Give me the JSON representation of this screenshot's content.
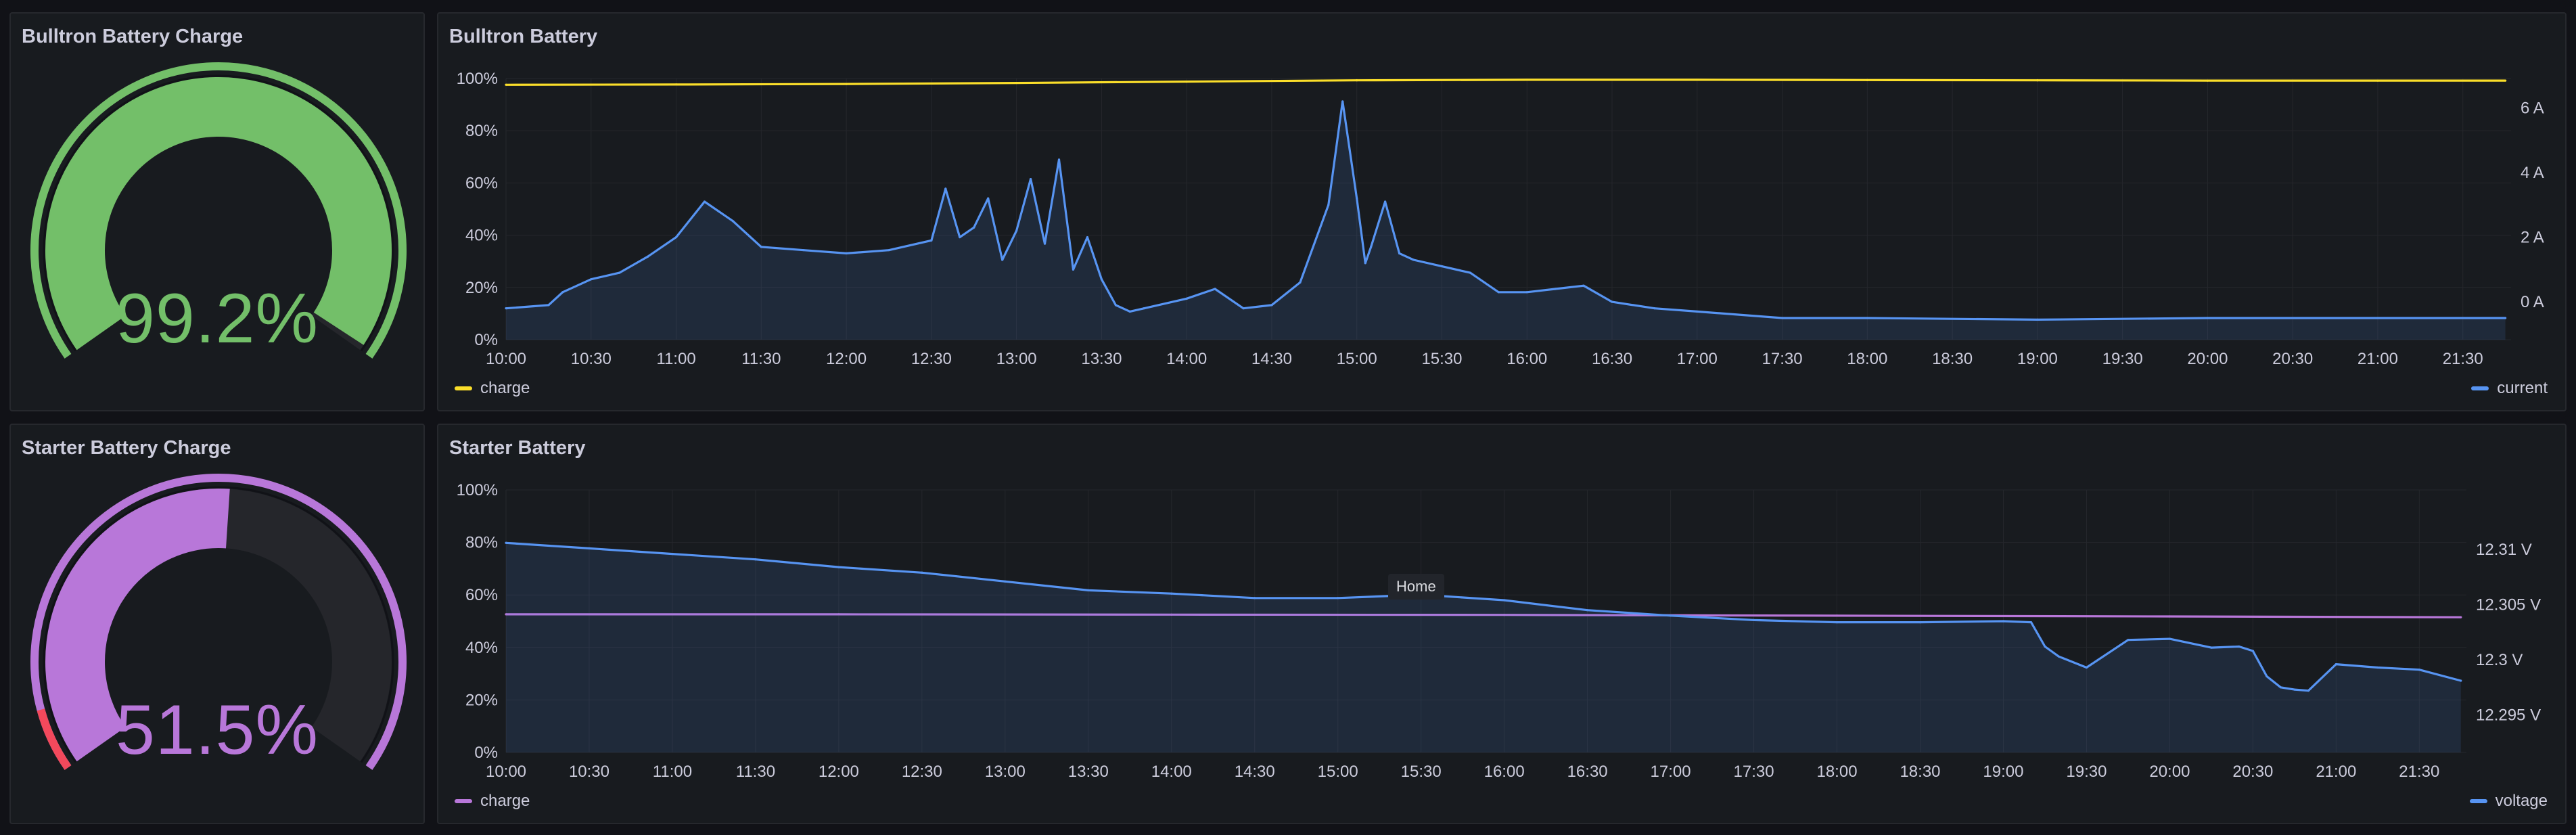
{
  "panels": {
    "bulltron_gauge": {
      "title": "Bulltron Battery Charge",
      "value_text": "99.2%",
      "value": 99.2,
      "min": 0,
      "max": 100,
      "color": "#73bf69"
    },
    "starter_gauge": {
      "title": "Starter Battery Charge",
      "value_text": "51.5%",
      "value": 51.5,
      "min": 0,
      "max": 100,
      "color": "#b877d9",
      "threshold_color": "#f2495c"
    },
    "bulltron_chart": {
      "title": "Bulltron Battery",
      "legend_left": "charge",
      "legend_right": "current"
    },
    "starter_chart": {
      "title": "Starter Battery",
      "legend_left": "charge",
      "legend_right": "voltage",
      "tooltip": "Home"
    }
  },
  "chart_data": [
    {
      "type": "line",
      "title": "Bulltron Battery",
      "x_ticks": [
        "10:00",
        "10:30",
        "11:00",
        "11:30",
        "12:00",
        "12:30",
        "13:00",
        "13:30",
        "14:00",
        "14:30",
        "15:00",
        "15:30",
        "16:00",
        "16:30",
        "17:00",
        "17:30",
        "18:00",
        "18:30",
        "19:00",
        "19:30",
        "20:00",
        "20:30",
        "21:00",
        "21:30"
      ],
      "y_left": {
        "ticks": [
          "0%",
          "20%",
          "40%",
          "60%",
          "80%",
          "100%"
        ],
        "range": [
          0,
          100
        ]
      },
      "y_right": {
        "ticks": [
          "0 A",
          "2 A",
          "4 A",
          "6 A"
        ],
        "range": [
          -1.17,
          6.91
        ]
      },
      "grid": true,
      "series": [
        {
          "name": "charge",
          "axis": "left",
          "color": "#fade2a",
          "fill": false,
          "x": [
            "10:00",
            "11:00",
            "12:00",
            "13:00",
            "14:00",
            "15:00",
            "16:00",
            "17:00",
            "18:00",
            "19:00",
            "20:00",
            "21:00",
            "21:45"
          ],
          "y": [
            97.6,
            97.7,
            97.9,
            98.3,
            98.8,
            99.3,
            99.5,
            99.5,
            99.4,
            99.3,
            99.2,
            99.2,
            99.2
          ]
        },
        {
          "name": "current",
          "axis": "right",
          "color": "#5794f2",
          "fill": true,
          "x": [
            "10:00",
            "10:15",
            "10:20",
            "10:30",
            "10:40",
            "10:50",
            "11:00",
            "11:10",
            "11:15",
            "11:20",
            "11:30",
            "11:45",
            "12:00",
            "12:15",
            "12:30",
            "12:35",
            "12:40",
            "12:45",
            "12:50",
            "12:55",
            "13:00",
            "13:05",
            "13:10",
            "13:15",
            "13:20",
            "13:25",
            "13:30",
            "13:35",
            "13:40",
            "13:45",
            "14:00",
            "14:10",
            "14:20",
            "14:30",
            "14:40",
            "14:50",
            "14:55",
            "15:00",
            "15:03",
            "15:05",
            "15:10",
            "15:15",
            "15:20",
            "15:30",
            "15:40",
            "15:50",
            "16:00",
            "16:10",
            "16:20",
            "16:30",
            "16:45",
            "17:00",
            "17:30",
            "18:00",
            "19:00",
            "20:00",
            "21:00",
            "21:45"
          ],
          "y": [
            -0.2,
            -0.1,
            0.3,
            0.7,
            0.9,
            1.4,
            2.0,
            3.1,
            2.8,
            2.5,
            1.7,
            1.6,
            1.5,
            1.6,
            1.9,
            3.5,
            2.0,
            2.3,
            3.2,
            1.3,
            2.2,
            3.8,
            1.8,
            4.4,
            1.0,
            2.0,
            0.7,
            -0.1,
            -0.3,
            -0.2,
            0.1,
            0.4,
            -0.2,
            -0.1,
            0.6,
            3.0,
            6.2,
            3.2,
            1.2,
            1.7,
            3.1,
            1.5,
            1.3,
            1.1,
            0.9,
            0.3,
            0.3,
            0.4,
            0.5,
            0.0,
            -0.2,
            -0.3,
            -0.5,
            -0.5,
            -0.55,
            -0.5,
            -0.5,
            -0.5
          ]
        }
      ]
    },
    {
      "type": "line",
      "title": "Starter Battery",
      "x_ticks": [
        "10:00",
        "10:30",
        "11:00",
        "11:30",
        "12:00",
        "12:30",
        "13:00",
        "13:30",
        "14:00",
        "14:30",
        "15:00",
        "15:30",
        "16:00",
        "16:30",
        "17:00",
        "17:30",
        "18:00",
        "18:30",
        "19:00",
        "19:30",
        "20:00",
        "20:30",
        "21:00",
        "21:30"
      ],
      "y_left": {
        "ticks": [
          "0%",
          "20%",
          "40%",
          "60%",
          "80%",
          "100%"
        ],
        "range": [
          0,
          100
        ]
      },
      "y_right": {
        "ticks": [
          "12.295 V",
          "12.3 V",
          "12.305 V",
          "12.31 V"
        ],
        "range": [
          12.2916,
          12.3154
        ]
      },
      "grid": true,
      "series": [
        {
          "name": "charge",
          "axis": "left",
          "color": "#b877d9",
          "fill": false,
          "x": [
            "10:00",
            "12:00",
            "14:00",
            "16:00",
            "18:00",
            "20:00",
            "21:45"
          ],
          "y": [
            52.6,
            52.6,
            52.5,
            52.4,
            52.1,
            51.8,
            51.5
          ]
        },
        {
          "name": "voltage",
          "axis": "right",
          "color": "#5794f2",
          "fill": true,
          "x": [
            "10:00",
            "10:30",
            "11:00",
            "11:30",
            "12:00",
            "12:30",
            "13:00",
            "13:30",
            "14:00",
            "14:30",
            "15:00",
            "15:30",
            "16:00",
            "16:30",
            "17:00",
            "17:30",
            "18:00",
            "18:30",
            "19:00",
            "19:10",
            "19:15",
            "19:20",
            "19:30",
            "19:45",
            "20:00",
            "20:15",
            "20:25",
            "20:30",
            "20:35",
            "20:40",
            "20:45",
            "20:50",
            "21:00",
            "21:15",
            "21:30",
            "21:45"
          ],
          "y": [
            12.3106,
            12.3101,
            12.3096,
            12.3091,
            12.3084,
            12.3079,
            12.3071,
            12.3063,
            12.306,
            12.3056,
            12.3056,
            12.3059,
            12.3054,
            12.3045,
            12.304,
            12.3036,
            12.3034,
            12.3034,
            12.3035,
            12.3034,
            12.3012,
            12.3003,
            12.2993,
            12.3018,
            12.3019,
            12.3011,
            12.3012,
            12.3008,
            12.2985,
            12.2975,
            12.2973,
            12.2972,
            12.2996,
            12.2993,
            12.2991,
            12.2981
          ]
        }
      ]
    }
  ]
}
